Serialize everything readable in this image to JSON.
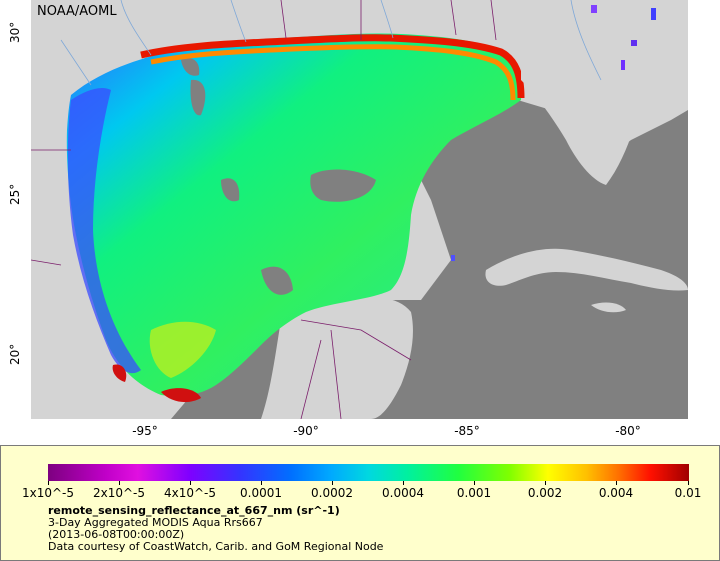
{
  "map": {
    "agency": "NOAA/AOML",
    "lat_labels": [
      "30°",
      "25°",
      "20°"
    ],
    "lon_labels": [
      "-95°",
      "-90°",
      "-85°",
      "-80°"
    ]
  },
  "legend": {
    "ticks": [
      "1x10^-5",
      "2x10^-5",
      "4x10^-5",
      "0.0001",
      "0.0002",
      "0.0004",
      "0.001",
      "0.002",
      "0.004",
      "0.01"
    ],
    "variable": "remote_sensing_reflectance_at_667_nm (sr^-1)",
    "product": "3-Day Aggregated MODIS Aqua Rrs667",
    "date": "(2013-06-08T00:00:00Z)",
    "credit": "Data courtesy of CoastWatch, Carib. and GoM Regional Node"
  },
  "colors": {
    "land": "#d4d4d4",
    "no_data": "#808080",
    "border": "#7b1f6b",
    "river": "#7fa8d8"
  }
}
